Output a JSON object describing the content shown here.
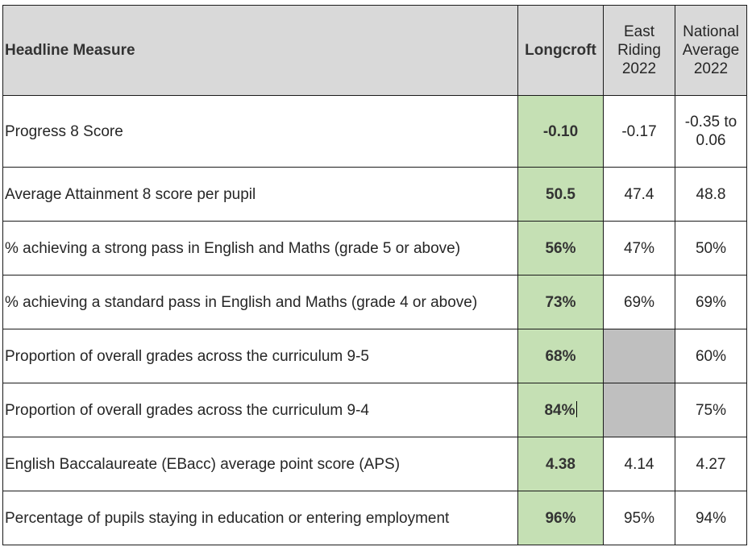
{
  "table": {
    "headers": {
      "measure": "Headline Measure",
      "longcroft": "Longcroft",
      "east_riding": [
        "East",
        "Riding",
        "2022"
      ],
      "national": [
        "National",
        "Average",
        "2022"
      ]
    },
    "rows": [
      {
        "measure": "Progress 8 Score",
        "longcroft": "-0.10",
        "east_riding": "-0.17",
        "national": [
          "-0.35 to",
          "0.06"
        ]
      },
      {
        "measure": "Average Attainment 8 score per pupil",
        "longcroft": "50.5",
        "east_riding": "47.4",
        "national": "48.8"
      },
      {
        "measure": "% achieving a strong pass in English and Maths (grade 5 or above)",
        "longcroft": "56%",
        "east_riding": "47%",
        "national": "50%"
      },
      {
        "measure": "% achieving a standard pass in English and Maths (grade 4 or above)",
        "longcroft": "73%",
        "east_riding": "69%",
        "national": "69%"
      },
      {
        "measure": "Proportion of overall grades across the curriculum 9-5",
        "longcroft": "68%",
        "east_riding": "",
        "national": "60%"
      },
      {
        "measure": "Proportion of overall grades across the curriculum 9-4",
        "longcroft": "84%",
        "east_riding": "",
        "national": "75%"
      },
      {
        "measure": "English Baccalaureate (EBacc) average point score (APS)",
        "longcroft": "4.38",
        "east_riding": "4.14",
        "national": "4.27"
      },
      {
        "measure": "Percentage of pupils staying in education or entering employment",
        "longcroft": "96%",
        "east_riding": "95%",
        "national": "94%"
      }
    ]
  },
  "colors": {
    "header_bg": "#d9d9d9",
    "longcroft_bg": "#c5e0b4",
    "empty_cell_bg": "#bfbfbf",
    "border": "#1a1a1a"
  }
}
